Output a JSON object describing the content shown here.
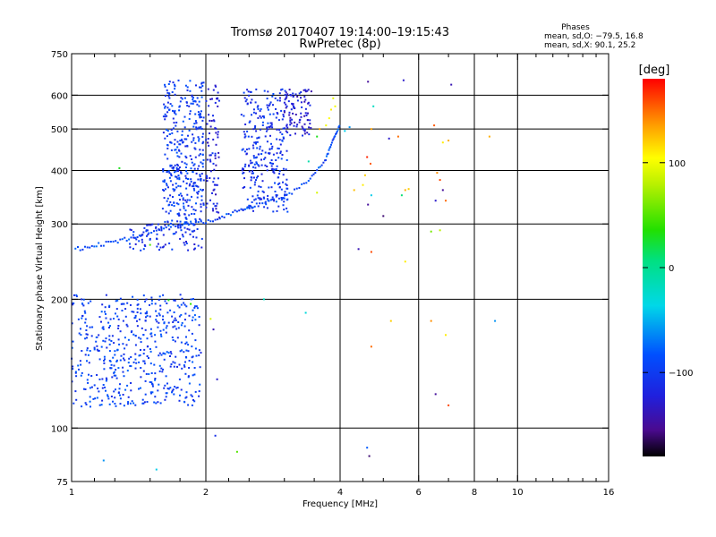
{
  "chart_data": {
    "type": "scatter",
    "title_line1": "Tromsø 20170407 19:14:00–19:15:43",
    "title_line2": "RwPretec (8p)",
    "stats": {
      "heading": "Phases",
      "line1": "mean, sd,O: −79.5, 16.8",
      "line2": "mean, sd,X:  90.1, 25.2"
    },
    "xlabel": "Frequency [MHz]",
    "ylabel": "Stationary phase Virtual Height [km]",
    "xscale": "log2",
    "yscale": "log",
    "xlim": [
      1,
      16
    ],
    "ylim": [
      75,
      750
    ],
    "x_ticks": [
      1,
      2,
      4,
      6,
      8,
      10,
      16
    ],
    "x_tick_labels": [
      "1",
      "2",
      "4",
      "6",
      "8",
      "10",
      "16"
    ],
    "x_minor_ticks": [
      1.125,
      1.25,
      1.5,
      1.75,
      2.25,
      2.5,
      3,
      3.5,
      4.5,
      5,
      7,
      9,
      11,
      12,
      13,
      14,
      15
    ],
    "y_ticks": [
      75,
      100,
      200,
      300,
      400,
      500,
      600,
      750
    ],
    "y_tick_labels": [
      "75",
      "100",
      "200",
      "300",
      "400",
      "500",
      "600",
      "750"
    ],
    "x_grid": [
      2,
      4,
      6,
      8,
      10
    ],
    "y_grid": [
      100,
      200,
      300,
      400,
      500,
      600
    ],
    "colorbar": {
      "label": "[deg]",
      "range": [
        -180,
        180
      ],
      "ticks": [
        100,
        0,
        -100
      ],
      "tick_labels": [
        "100",
        "0",
        "−100"
      ]
    },
    "clusters": [
      {
        "f_min": 1.0,
        "f_max": 1.95,
        "h_min": 112,
        "h_max": 205,
        "n": 520,
        "phase": -95
      },
      {
        "f_min": 1.35,
        "f_max": 1.97,
        "h_min": 260,
        "h_max": 300,
        "n": 80,
        "phase": -110
      },
      {
        "f_min": 1.6,
        "f_max": 1.98,
        "h_min": 290,
        "h_max": 650,
        "n": 380,
        "phase": -100
      },
      {
        "f_min": 2.0,
        "f_max": 2.15,
        "h_min": 300,
        "h_max": 640,
        "n": 80,
        "phase": -120
      },
      {
        "f_min": 2.4,
        "f_max": 3.05,
        "h_min": 320,
        "h_max": 620,
        "n": 300,
        "phase": -105
      },
      {
        "f_min": 3.0,
        "f_max": 3.45,
        "h_min": 480,
        "h_max": 620,
        "n": 90,
        "phase": -125
      }
    ],
    "trace": [
      {
        "f": 1.02,
        "h": 262
      },
      {
        "f": 1.15,
        "h": 268
      },
      {
        "f": 1.3,
        "h": 275
      },
      {
        "f": 1.45,
        "h": 285
      },
      {
        "f": 1.65,
        "h": 298
      },
      {
        "f": 1.85,
        "h": 302
      },
      {
        "f": 2.1,
        "h": 305
      },
      {
        "f": 2.35,
        "h": 322
      },
      {
        "f": 2.6,
        "h": 332
      },
      {
        "f": 3.0,
        "h": 345
      },
      {
        "f": 3.4,
        "h": 380
      },
      {
        "f": 3.7,
        "h": 420
      },
      {
        "f": 3.85,
        "h": 470
      },
      {
        "f": 4.0,
        "h": 510
      }
    ],
    "scatter_points": [
      {
        "f": 3.72,
        "h": 510,
        "phase": 100
      },
      {
        "f": 3.78,
        "h": 530,
        "phase": 105
      },
      {
        "f": 3.82,
        "h": 555,
        "phase": 110
      },
      {
        "f": 3.86,
        "h": 590,
        "phase": 95
      },
      {
        "f": 3.6,
        "h": 500,
        "phase": 130
      },
      {
        "f": 3.9,
        "h": 565,
        "phase": 100
      },
      {
        "f": 3.55,
        "h": 480,
        "phase": 30
      },
      {
        "f": 3.4,
        "h": 420,
        "phase": -10
      },
      {
        "f": 4.1,
        "h": 495,
        "phase": -40
      },
      {
        "f": 4.2,
        "h": 505,
        "phase": -60
      },
      {
        "f": 4.62,
        "h": 645,
        "phase": -150
      },
      {
        "f": 5.55,
        "h": 650,
        "phase": -130
      },
      {
        "f": 7.1,
        "h": 635,
        "phase": -140
      },
      {
        "f": 4.75,
        "h": 565,
        "phase": -20
      },
      {
        "f": 4.7,
        "h": 500,
        "phase": 135
      },
      {
        "f": 5.15,
        "h": 475,
        "phase": -130
      },
      {
        "f": 5.4,
        "h": 480,
        "phase": 150
      },
      {
        "f": 6.5,
        "h": 510,
        "phase": 155
      },
      {
        "f": 7.0,
        "h": 470,
        "phase": 130
      },
      {
        "f": 6.8,
        "h": 465,
        "phase": 110
      },
      {
        "f": 8.65,
        "h": 480,
        "phase": 130
      },
      {
        "f": 4.6,
        "h": 430,
        "phase": 170
      },
      {
        "f": 4.68,
        "h": 415,
        "phase": 155
      },
      {
        "f": 4.55,
        "h": 390,
        "phase": 120
      },
      {
        "f": 4.5,
        "h": 370,
        "phase": 110
      },
      {
        "f": 4.7,
        "h": 350,
        "phase": -40
      },
      {
        "f": 4.62,
        "h": 333,
        "phase": -150
      },
      {
        "f": 5.0,
        "h": 313,
        "phase": -160
      },
      {
        "f": 5.6,
        "h": 360,
        "phase": 130
      },
      {
        "f": 5.7,
        "h": 362,
        "phase": 120
      },
      {
        "f": 6.6,
        "h": 395,
        "phase": 140
      },
      {
        "f": 6.7,
        "h": 380,
        "phase": 160
      },
      {
        "f": 6.8,
        "h": 360,
        "phase": -150
      },
      {
        "f": 6.55,
        "h": 340,
        "phase": -130
      },
      {
        "f": 6.9,
        "h": 340,
        "phase": 150
      },
      {
        "f": 5.5,
        "h": 350,
        "phase": 10
      },
      {
        "f": 6.7,
        "h": 290,
        "phase": 80
      },
      {
        "f": 6.4,
        "h": 288,
        "phase": 60
      },
      {
        "f": 4.4,
        "h": 262,
        "phase": -140
      },
      {
        "f": 4.7,
        "h": 258,
        "phase": 160
      },
      {
        "f": 5.6,
        "h": 245,
        "phase": 110
      },
      {
        "f": 4.3,
        "h": 360,
        "phase": 125
      },
      {
        "f": 3.55,
        "h": 355,
        "phase": 90
      },
      {
        "f": 2.7,
        "h": 200,
        "phase": -20
      },
      {
        "f": 1.65,
        "h": 199,
        "phase": 30
      },
      {
        "f": 1.85,
        "h": 195,
        "phase": 40
      },
      {
        "f": 2.05,
        "h": 180,
        "phase": 90
      },
      {
        "f": 2.08,
        "h": 170,
        "phase": -140
      },
      {
        "f": 3.35,
        "h": 186,
        "phase": -30
      },
      {
        "f": 5.2,
        "h": 178,
        "phase": 120
      },
      {
        "f": 6.4,
        "h": 178,
        "phase": 140
      },
      {
        "f": 6.9,
        "h": 165,
        "phase": 110
      },
      {
        "f": 8.9,
        "h": 178,
        "phase": -60
      },
      {
        "f": 4.7,
        "h": 155,
        "phase": 150
      },
      {
        "f": 2.12,
        "h": 130,
        "phase": -130
      },
      {
        "f": 6.55,
        "h": 120,
        "phase": -150
      },
      {
        "f": 7.0,
        "h": 113,
        "phase": 160
      },
      {
        "f": 2.1,
        "h": 96,
        "phase": -110
      },
      {
        "f": 2.35,
        "h": 88,
        "phase": 50
      },
      {
        "f": 4.6,
        "h": 90,
        "phase": -80
      },
      {
        "f": 4.65,
        "h": 86,
        "phase": -160
      },
      {
        "f": 1.18,
        "h": 84,
        "phase": -60
      },
      {
        "f": 1.55,
        "h": 80,
        "phase": -40
      },
      {
        "f": 1.28,
        "h": 405,
        "phase": 30
      },
      {
        "f": 1.5,
        "h": 268,
        "phase": 50
      }
    ]
  }
}
